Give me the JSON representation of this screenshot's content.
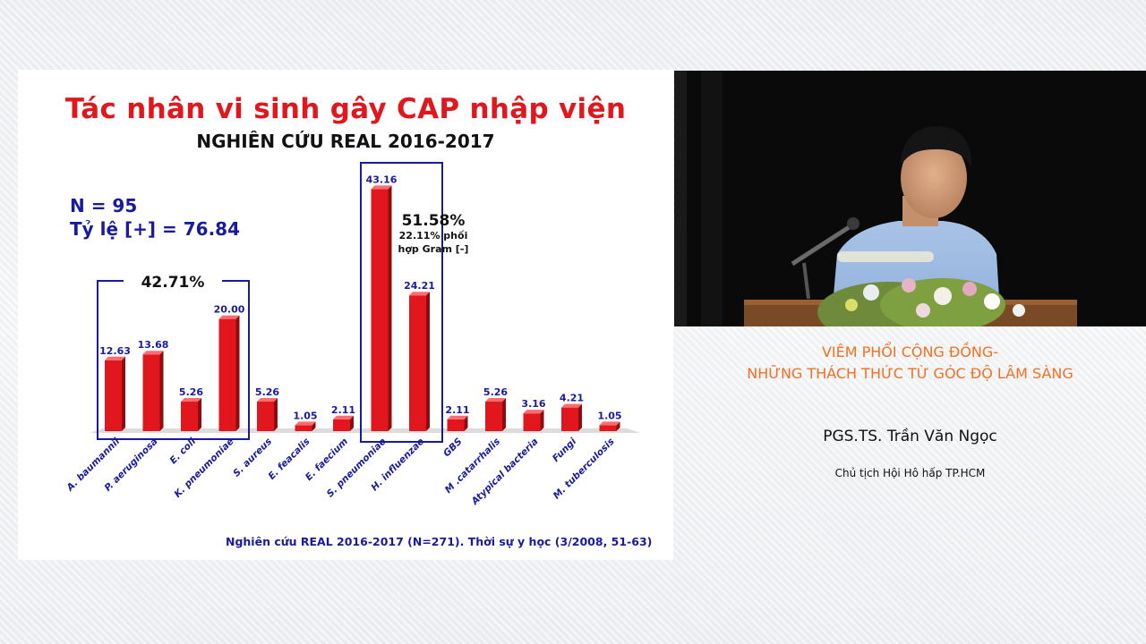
{
  "slide": {
    "title": "Tác nhân vi sinh gây CAP nhập viện",
    "subtitle": "NGHIÊN CỨU REAL 2016-2017",
    "n_label": "N = 95",
    "positive_rate": "Tỷ lệ [+] = 76.84",
    "group1_percent": "42.71%",
    "group2_percent": "51.58%",
    "group2_note_line1": "22.11% phối",
    "group2_note_line2": "hợp Gram [-]",
    "footnote": "Nghiên cứu REAL 2016-2017 (N=271). Thời sự y học (3/2008, 51-63)"
  },
  "chart_data": {
    "type": "bar",
    "categories": [
      "A. baumannii",
      "P. aeruginosa",
      "E. coli",
      "K. pneumoniae",
      "S. aureus",
      "E. feacalis",
      "E. faecium",
      "S. pneumoniae",
      "H. influenzae",
      "GBS",
      "M .catarrhalis",
      "Atypical bacteria",
      "Fungi",
      "M. tuberculosis"
    ],
    "values": [
      12.63,
      13.68,
      5.26,
      20.0,
      5.26,
      1.05,
      2.11,
      43.16,
      24.21,
      2.11,
      5.26,
      3.16,
      4.21,
      1.05
    ],
    "value_labels": [
      "12.63",
      "13.68",
      "5.26",
      "20.00",
      "5.26",
      "1.05",
      "2.11",
      "43.16",
      "24.21",
      "2.11",
      "5.26",
      "3.16",
      "4.21",
      "1.05"
    ],
    "bar_color": "#e2171d",
    "label_color": "#1a1a9e"
  },
  "presentation": {
    "talk_title_line1": "VIÊM PHỔI CỘNG ĐỒNG-",
    "talk_title_line2": "NHỮNG THÁCH THỨC TỪ GÓC ĐỘ LÂM SÀNG",
    "speaker_name": "PGS.TS. Trần Văn Ngọc",
    "speaker_role": "Chủ tịch Hội Hô hấp TP.HCM",
    "accent_color": "#f36f21"
  }
}
